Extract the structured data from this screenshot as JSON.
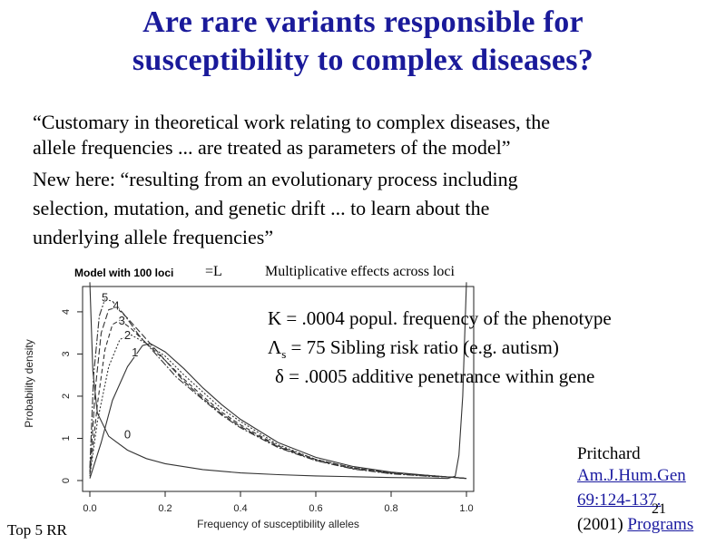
{
  "slide": {
    "title_line1": "Are rare variants responsible for",
    "title_line2": "susceptibility to complex diseases?",
    "quote_lines": [
      "“Customary in theoretical work relating to complex diseases, the",
      "allele frequencies ... are treated as parameters of the model”",
      "New here: “resulting from an evolutionary process including",
      "selection, mutation, and genetic drift ... to learn about the",
      "underlying allele frequencies”"
    ],
    "model_label": "Model with 100 loci",
    "eq_label": "=L",
    "effects_label": "Multiplicative effects across loci",
    "params": {
      "k_line": "K = .0004 popul. frequency of the phenotype",
      "lambda_symbol": "Λ",
      "lambda_sub": "s",
      "lambda_rest": " = 75  Sibling risk ratio  (e.g. autism)",
      "delta_line": "δ  = .0005 additive penetrance within gene"
    },
    "reference": {
      "author": "Pritchard",
      "journal_link": "Am.J.Hum.Gen",
      "pages_link": "69:124-137.",
      "year": "(2001)",
      "programs_link": "Programs"
    },
    "slide_number": "21",
    "footer_left": "Top 5 RR"
  },
  "chart_data": {
    "type": "line",
    "xlabel": "Frequency of susceptibility alleles",
    "ylabel": "Probability density",
    "xlim": [
      0,
      1
    ],
    "ylim": [
      0,
      4.6
    ],
    "xticks": [
      "0.0",
      "0.2",
      "0.4",
      "0.6",
      "0.8",
      "1.0"
    ],
    "yticks": [
      "0",
      "1",
      "2",
      "3",
      "4"
    ],
    "series": [
      {
        "name": "0",
        "dash": "",
        "points": [
          [
            0.0,
            4.7
          ],
          [
            0.008,
            2.6
          ],
          [
            0.02,
            1.6
          ],
          [
            0.05,
            1.05
          ],
          [
            0.1,
            0.72
          ],
          [
            0.15,
            0.52
          ],
          [
            0.2,
            0.4
          ],
          [
            0.3,
            0.26
          ],
          [
            0.4,
            0.18
          ],
          [
            0.5,
            0.14
          ],
          [
            0.6,
            0.11
          ],
          [
            0.7,
            0.09
          ],
          [
            0.8,
            0.07
          ],
          [
            0.9,
            0.06
          ],
          [
            0.95,
            0.05
          ],
          [
            0.97,
            0.1
          ],
          [
            0.98,
            0.6
          ],
          [
            0.99,
            2.0
          ],
          [
            1.0,
            4.7
          ]
        ]
      },
      {
        "name": "1",
        "dash": "",
        "points": [
          [
            0.0,
            0.05
          ],
          [
            0.03,
            0.9
          ],
          [
            0.06,
            1.9
          ],
          [
            0.1,
            2.7
          ],
          [
            0.14,
            3.2
          ],
          [
            0.16,
            3.25
          ],
          [
            0.2,
            3.05
          ],
          [
            0.25,
            2.65
          ],
          [
            0.3,
            2.2
          ],
          [
            0.35,
            1.8
          ],
          [
            0.4,
            1.45
          ],
          [
            0.5,
            0.9
          ],
          [
            0.6,
            0.55
          ],
          [
            0.7,
            0.33
          ],
          [
            0.8,
            0.2
          ],
          [
            0.9,
            0.12
          ],
          [
            0.96,
            0.08
          ],
          [
            1.0,
            0.05
          ]
        ]
      },
      {
        "name": "2",
        "dash": "2,2",
        "points": [
          [
            0.0,
            0.1
          ],
          [
            0.02,
            1.4
          ],
          [
            0.05,
            2.7
          ],
          [
            0.08,
            3.35
          ],
          [
            0.11,
            3.45
          ],
          [
            0.14,
            3.3
          ],
          [
            0.2,
            2.95
          ],
          [
            0.25,
            2.5
          ],
          [
            0.3,
            2.1
          ],
          [
            0.35,
            1.7
          ],
          [
            0.4,
            1.4
          ],
          [
            0.5,
            0.85
          ],
          [
            0.6,
            0.5
          ],
          [
            0.7,
            0.3
          ],
          [
            0.8,
            0.18
          ],
          [
            0.9,
            0.12
          ],
          [
            0.96,
            0.08
          ],
          [
            1.0,
            0.05
          ]
        ]
      },
      {
        "name": "3",
        "dash": "5,3",
        "points": [
          [
            0.0,
            0.15
          ],
          [
            0.02,
            1.8
          ],
          [
            0.04,
            3.1
          ],
          [
            0.06,
            3.7
          ],
          [
            0.08,
            3.8
          ],
          [
            0.11,
            3.6
          ],
          [
            0.15,
            3.25
          ],
          [
            0.2,
            2.85
          ],
          [
            0.25,
            2.4
          ],
          [
            0.3,
            2.0
          ],
          [
            0.35,
            1.62
          ],
          [
            0.4,
            1.32
          ],
          [
            0.5,
            0.82
          ],
          [
            0.6,
            0.5
          ],
          [
            0.7,
            0.3
          ],
          [
            0.8,
            0.18
          ],
          [
            0.9,
            0.12
          ],
          [
            0.96,
            0.08
          ],
          [
            1.0,
            0.05
          ]
        ]
      },
      {
        "name": "4",
        "dash": "7,3",
        "points": [
          [
            0.0,
            0.2
          ],
          [
            0.015,
            2.2
          ],
          [
            0.03,
            3.5
          ],
          [
            0.05,
            4.05
          ],
          [
            0.07,
            4.1
          ],
          [
            0.1,
            3.85
          ],
          [
            0.15,
            3.35
          ],
          [
            0.2,
            2.85
          ],
          [
            0.25,
            2.35
          ],
          [
            0.3,
            1.95
          ],
          [
            0.35,
            1.58
          ],
          [
            0.4,
            1.28
          ],
          [
            0.5,
            0.8
          ],
          [
            0.6,
            0.48
          ],
          [
            0.7,
            0.28
          ],
          [
            0.8,
            0.17
          ],
          [
            0.9,
            0.11
          ],
          [
            0.96,
            0.08
          ],
          [
            1.0,
            0.05
          ]
        ]
      },
      {
        "name": "5",
        "dash": "8,2,2,2",
        "points": [
          [
            0.0,
            0.3
          ],
          [
            0.01,
            2.5
          ],
          [
            0.025,
            3.9
          ],
          [
            0.04,
            4.3
          ],
          [
            0.06,
            4.25
          ],
          [
            0.09,
            3.95
          ],
          [
            0.13,
            3.45
          ],
          [
            0.18,
            2.95
          ],
          [
            0.23,
            2.45
          ],
          [
            0.3,
            1.92
          ],
          [
            0.35,
            1.55
          ],
          [
            0.4,
            1.25
          ],
          [
            0.5,
            0.78
          ],
          [
            0.6,
            0.47
          ],
          [
            0.7,
            0.27
          ],
          [
            0.8,
            0.16
          ],
          [
            0.9,
            0.1
          ],
          [
            0.96,
            0.08
          ],
          [
            1.0,
            0.05
          ]
        ]
      }
    ],
    "curve_labels": [
      {
        "text": "5",
        "x": 0.04,
        "y": 4.25
      },
      {
        "text": "4",
        "x": 0.07,
        "y": 4.05
      },
      {
        "text": "3",
        "x": 0.085,
        "y": 3.7
      },
      {
        "text": "2",
        "x": 0.1,
        "y": 3.35
      },
      {
        "text": "1",
        "x": 0.12,
        "y": 2.95
      },
      {
        "text": "0",
        "x": 0.1,
        "y": 1.0
      }
    ]
  }
}
